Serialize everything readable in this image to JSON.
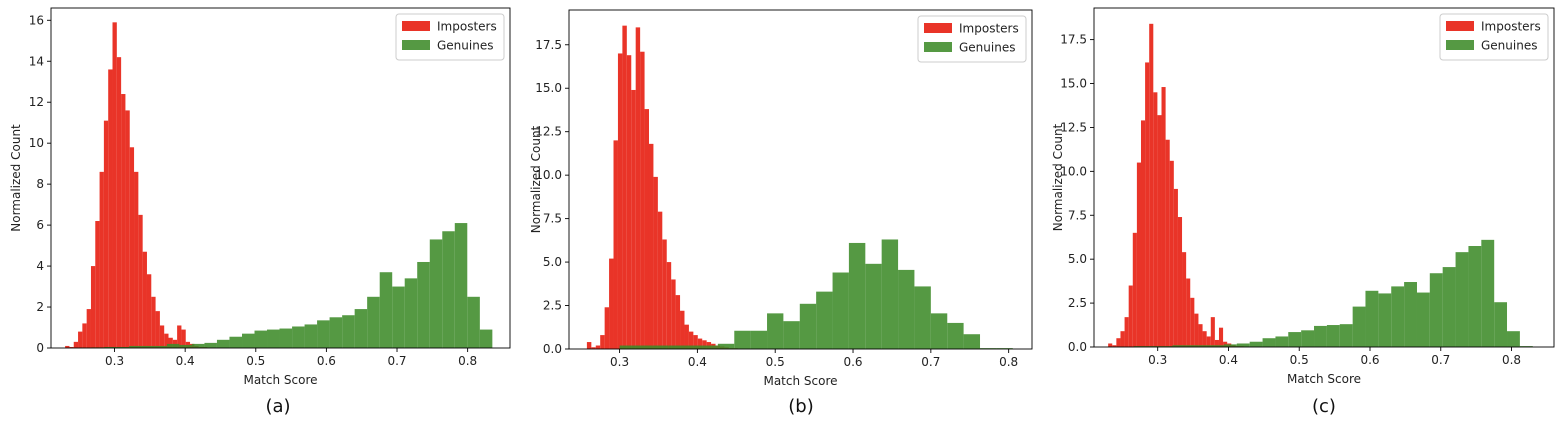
{
  "colors": {
    "imposters": "#e8291c",
    "genuines": "#3d8b29"
  },
  "chart_data": [
    {
      "type": "bar",
      "caption": "(a)",
      "xlabel": "Match Score",
      "ylabel": "Normalized Count",
      "xlim": [
        0.21,
        0.86
      ],
      "ylim": [
        0,
        16.6
      ],
      "xticks": [
        0.3,
        0.4,
        0.5,
        0.6,
        0.7,
        0.8
      ],
      "yticks": [
        0,
        2,
        4,
        6,
        8,
        10,
        12,
        14,
        16
      ],
      "legend": {
        "position": "top-right",
        "entries": [
          "Imposters",
          "Genuines"
        ]
      },
      "series": [
        {
          "name": "Imposters",
          "bin_edges": [
            0.23,
            0.2361,
            0.2422,
            0.2483,
            0.2544,
            0.2605,
            0.2666,
            0.2727,
            0.2788,
            0.2849,
            0.291,
            0.2971,
            0.3032,
            0.3093,
            0.3154,
            0.3215,
            0.3276,
            0.3337,
            0.3398,
            0.3459,
            0.352,
            0.3581,
            0.3642,
            0.3703,
            0.3764,
            0.3825,
            0.3886,
            0.3947,
            0.4008,
            0.4069,
            0.413,
            0.4191,
            0.4252,
            0.4313
          ],
          "values": [
            0.1,
            0.05,
            0.3,
            0.8,
            1.2,
            1.9,
            4.0,
            6.2,
            8.6,
            11.1,
            13.6,
            15.9,
            14.2,
            12.4,
            11.6,
            9.8,
            8.6,
            6.5,
            4.7,
            3.6,
            2.5,
            1.8,
            1.1,
            0.7,
            0.5,
            0.4,
            1.1,
            0.9,
            0.3,
            0.2,
            0.1,
            0.05,
            0.05
          ]
        },
        {
          "name": "Genuines",
          "bin_edges": [
            0.25,
            0.2677,
            0.2855,
            0.3032,
            0.3209,
            0.3386,
            0.3564,
            0.3741,
            0.3918,
            0.4095,
            0.4273,
            0.445,
            0.4627,
            0.4805,
            0.4982,
            0.5159,
            0.5336,
            0.5514,
            0.5691,
            0.5868,
            0.6045,
            0.6223,
            0.64,
            0.6577,
            0.6755,
            0.6932,
            0.7109,
            0.7286,
            0.7464,
            0.7641,
            0.7818,
            0.7995,
            0.8173,
            0.835
          ],
          "values": [
            0.02,
            0.03,
            0.05,
            0.05,
            0.1,
            0.1,
            0.1,
            0.2,
            0.15,
            0.2,
            0.25,
            0.4,
            0.55,
            0.7,
            0.85,
            0.9,
            0.95,
            1.05,
            1.15,
            1.35,
            1.5,
            1.6,
            1.9,
            2.5,
            3.7,
            3.0,
            3.4,
            4.2,
            5.3,
            5.7,
            6.1,
            2.5,
            0.9
          ]
        }
      ]
    },
    {
      "type": "bar",
      "caption": "(b)",
      "xlabel": "Match Score",
      "ylabel": "Normalized Count",
      "xlim": [
        0.235,
        0.83
      ],
      "ylim": [
        0,
        19.5
      ],
      "xticks": [
        0.3,
        0.4,
        0.5,
        0.6,
        0.7,
        0.8
      ],
      "yticks": [
        0.0,
        2.5,
        5.0,
        7.5,
        10.0,
        12.5,
        15.0,
        17.5
      ],
      "legend": {
        "position": "top-right",
        "entries": [
          "Imposters",
          "Genuines"
        ]
      },
      "series": [
        {
          "name": "Imposters",
          "bin_edges": [
            0.258,
            0.2637,
            0.2694,
            0.2751,
            0.2808,
            0.2865,
            0.2922,
            0.2979,
            0.3036,
            0.3093,
            0.315,
            0.3207,
            0.3264,
            0.3321,
            0.3378,
            0.3435,
            0.3492,
            0.3549,
            0.3606,
            0.3663,
            0.372,
            0.3777,
            0.3834,
            0.3891,
            0.3948,
            0.4005,
            0.4062,
            0.4119,
            0.4176,
            0.4233,
            0.429,
            0.4347,
            0.4404,
            0.4461,
            0.4518
          ],
          "values": [
            0.4,
            0.1,
            0.2,
            0.8,
            2.4,
            5.2,
            12.0,
            17.0,
            18.6,
            16.9,
            14.9,
            18.5,
            17.1,
            13.8,
            11.8,
            9.9,
            7.9,
            6.3,
            5.0,
            4.0,
            3.1,
            2.2,
            1.4,
            1.0,
            0.8,
            0.6,
            0.5,
            0.4,
            0.3,
            0.2,
            0.15,
            0.1,
            0.05,
            0.05
          ]
        },
        {
          "name": "Genuines",
          "bin_edges": [
            0.3,
            0.3211,
            0.3421,
            0.3632,
            0.3842,
            0.4053,
            0.4263,
            0.4474,
            0.4684,
            0.4895,
            0.5105,
            0.5316,
            0.5526,
            0.5737,
            0.5947,
            0.6158,
            0.6368,
            0.6579,
            0.6789,
            0.7,
            0.7211,
            0.7421,
            0.7632,
            0.7842,
            0.8053
          ],
          "values": [
            0.2,
            0.2,
            0.2,
            0.2,
            0.2,
            0.2,
            0.3,
            1.05,
            1.05,
            2.05,
            1.6,
            2.6,
            3.3,
            4.4,
            6.1,
            4.9,
            6.3,
            4.55,
            3.6,
            2.05,
            1.5,
            0.85,
            0.05,
            0.05
          ]
        }
      ]
    },
    {
      "type": "bar",
      "caption": "(c)",
      "xlabel": "Match Score",
      "ylabel": "Normalized Count",
      "xlim": [
        0.21,
        0.86
      ],
      "ylim": [
        0,
        19.3
      ],
      "xticks": [
        0.3,
        0.4,
        0.5,
        0.6,
        0.7,
        0.8
      ],
      "yticks": [
        0.0,
        2.5,
        5.0,
        7.5,
        10.0,
        12.5,
        15.0,
        17.5
      ],
      "legend": {
        "position": "top-right",
        "entries": [
          "Imposters",
          "Genuines"
        ]
      },
      "series": [
        {
          "name": "Imposters",
          "bin_edges": [
            0.23,
            0.2358,
            0.2416,
            0.2474,
            0.2532,
            0.259,
            0.2648,
            0.2706,
            0.2764,
            0.2822,
            0.288,
            0.2938,
            0.2996,
            0.3054,
            0.3112,
            0.317,
            0.3228,
            0.3286,
            0.3344,
            0.3402,
            0.346,
            0.3518,
            0.3576,
            0.3634,
            0.3692,
            0.375,
            0.3808,
            0.3866,
            0.3924,
            0.3982,
            0.404,
            0.4098,
            0.4156,
            0.4214
          ],
          "values": [
            0.2,
            0.1,
            0.5,
            0.9,
            1.7,
            3.5,
            6.5,
            10.5,
            12.9,
            16.2,
            18.4,
            14.5,
            13.2,
            14.8,
            11.8,
            10.6,
            9.0,
            7.4,
            5.4,
            3.9,
            2.8,
            1.9,
            1.3,
            0.9,
            0.6,
            1.7,
            0.4,
            1.1,
            0.3,
            0.2,
            0.1,
            0.05,
            0.05
          ]
        },
        {
          "name": "Genuines",
          "bin_edges": [
            0.23,
            0.2482,
            0.2664,
            0.2845,
            0.3027,
            0.3209,
            0.3391,
            0.3573,
            0.3755,
            0.3936,
            0.4118,
            0.43,
            0.4482,
            0.4664,
            0.4845,
            0.5027,
            0.5209,
            0.5391,
            0.5573,
            0.5755,
            0.5936,
            0.6118,
            0.63,
            0.6482,
            0.6664,
            0.6845,
            0.7027,
            0.7209,
            0.7391,
            0.7573,
            0.7755,
            0.7936,
            0.8118,
            0.83
          ],
          "values": [
            0.02,
            0.02,
            0.05,
            0.05,
            0.05,
            0.1,
            0.1,
            0.1,
            0.1,
            0.15,
            0.2,
            0.3,
            0.5,
            0.6,
            0.85,
            0.95,
            1.2,
            1.25,
            1.3,
            2.3,
            3.2,
            3.05,
            3.45,
            3.7,
            3.1,
            4.2,
            4.55,
            5.4,
            5.75,
            6.1,
            2.55,
            0.9,
            0.05
          ]
        }
      ]
    }
  ]
}
